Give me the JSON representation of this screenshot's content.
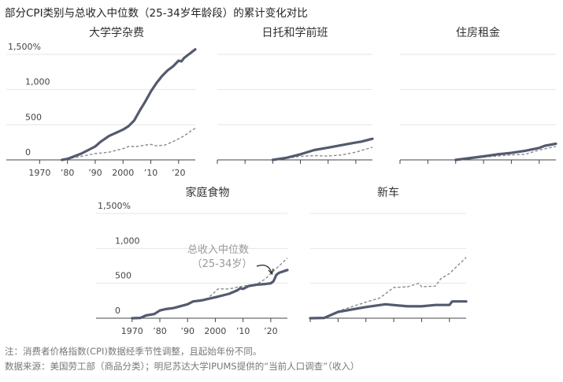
{
  "title": "部分CPI类别与总收入中位数（25-34岁年龄段）的累计变化对比",
  "notes": {
    "note": "注：消费者价格指数(CPI)数据经季节性调整，且起始年份不同。",
    "source": "数据来源：美国劳工部（商品分类）；明尼苏达大学IPUMS提供的“当前人口调查”（收入）"
  },
  "colors": {
    "cpi": "#545a6e",
    "income": "#8a8a8a",
    "grid": "#e6e6e6",
    "axis": "#444444"
  },
  "annotation": {
    "line1": "总收入中位数",
    "line2": "（25-34岁）"
  },
  "chart_data": [
    {
      "type": "line",
      "title": "大学学杂费",
      "ylim": [
        0,
        1500
      ],
      "xlim": [
        1958,
        2026
      ],
      "yticks": [
        "0",
        "500",
        "1,000",
        "1,500%"
      ],
      "xticks": [
        "1970",
        "’80",
        "’90",
        "2000",
        "’10",
        "’20"
      ],
      "series": [
        {
          "x": [
            1978,
            1980,
            1985,
            1990,
            1992,
            1995,
            2000,
            2002,
            2004,
            2006,
            2008,
            2010,
            2012,
            2014,
            2016,
            2018,
            2020,
            2021,
            2022,
            2024,
            2026
          ],
          "y": [
            0,
            15,
            90,
            190,
            260,
            340,
            430,
            480,
            560,
            700,
            830,
            970,
            1090,
            1190,
            1270,
            1330,
            1410,
            1400,
            1450,
            1510,
            1570
          ]
        },
        {
          "x": [
            1978,
            1985,
            1990,
            1995,
            2000,
            2002,
            2005,
            2008,
            2010,
            2012,
            2015,
            2018,
            2020,
            2022,
            2024,
            2026
          ],
          "y": [
            0,
            50,
            90,
            110,
            160,
            190,
            190,
            210,
            220,
            200,
            210,
            260,
            300,
            340,
            400,
            450
          ]
        }
      ]
    },
    {
      "type": "line",
      "title": "日托和学前班",
      "ylim": [
        0,
        1500
      ],
      "xlim": [
        1970,
        2026
      ],
      "series": [
        {
          "x": [
            1990,
            1995,
            2000,
            2005,
            2010,
            2015,
            2019,
            2022,
            2026
          ],
          "y": [
            0,
            30,
            80,
            140,
            175,
            210,
            240,
            260,
            300
          ]
        },
        {
          "x": [
            1990,
            2000,
            2005,
            2010,
            2015,
            2020,
            2026
          ],
          "y": [
            0,
            50,
            60,
            55,
            70,
            110,
            180
          ]
        }
      ]
    },
    {
      "type": "line",
      "title": "住房租金",
      "ylim": [
        0,
        1500
      ],
      "xlim": [
        1970,
        2026
      ],
      "series": [
        {
          "x": [
            1990,
            2000,
            2005,
            2010,
            2015,
            2020,
            2022,
            2026
          ],
          "y": [
            0,
            50,
            80,
            100,
            130,
            170,
            200,
            230
          ]
        },
        {
          "x": [
            1990,
            2000,
            2010,
            2015,
            2020,
            2026
          ],
          "y": [
            0,
            40,
            70,
            80,
            140,
            190
          ]
        }
      ]
    },
    {
      "type": "line",
      "title": "家庭食物",
      "ylim": [
        0,
        1500
      ],
      "xlim": [
        1957,
        2026
      ],
      "yticks": [
        "0",
        "500",
        "1,000",
        "1,500%"
      ],
      "xticks": [
        "1970",
        "’80",
        "’90",
        "2000",
        "’10",
        "’20"
      ],
      "series": [
        {
          "x": [
            1970,
            1973,
            1975,
            1978,
            1980,
            1982,
            1985,
            1990,
            1992,
            1995,
            2000,
            2005,
            2008,
            2009,
            2010,
            2012,
            2015,
            2018,
            2020,
            2021,
            2022,
            2023,
            2026
          ],
          "y": [
            0,
            5,
            40,
            60,
            110,
            130,
            145,
            200,
            240,
            255,
            300,
            350,
            400,
            430,
            420,
            460,
            480,
            490,
            500,
            530,
            620,
            650,
            690
          ]
        },
        {
          "x": [
            1998,
            2001,
            2005,
            2010,
            2015,
            2018,
            2020,
            2026
          ],
          "y": [
            310,
            420,
            420,
            460,
            490,
            560,
            640,
            860
          ]
        }
      ]
    },
    {
      "type": "line",
      "title": "新车",
      "ylim": [
        0,
        1500
      ],
      "xlim": [
        1970,
        2026
      ],
      "series": [
        {
          "x": [
            1970,
            1975,
            1980,
            1990,
            1997,
            2005,
            2010,
            2015,
            2020,
            2021,
            2026
          ],
          "y": [
            0,
            5,
            90,
            160,
            200,
            170,
            170,
            190,
            190,
            240,
            240
          ]
        },
        {
          "x": [
            1970,
            1975,
            1980,
            1990,
            1995,
            2000,
            2005,
            2009,
            2010,
            2015,
            2017,
            2020,
            2026
          ],
          "y": [
            0,
            10,
            100,
            230,
            290,
            440,
            450,
            500,
            450,
            460,
            570,
            640,
            870
          ]
        }
      ]
    }
  ]
}
